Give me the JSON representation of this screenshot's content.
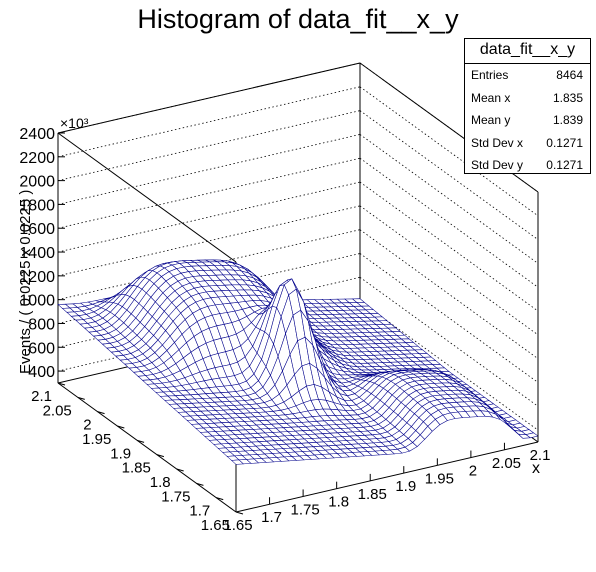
{
  "title": "Histogram of data_fit__x_y",
  "stats": {
    "name": "data_fit__x_y",
    "rows": [
      {
        "label": "Entries",
        "value": "8464"
      },
      {
        "label": "Mean x",
        "value": "1.835"
      },
      {
        "label": "Mean y",
        "value": "1.839"
      },
      {
        "label": "Std Dev x",
        "value": "0.1271"
      },
      {
        "label": "Std Dev y",
        "value": "0.1271"
      }
    ]
  },
  "chart_data": {
    "type": "lego-surface",
    "title": "Histogram of data_fit__x_y",
    "xlabel": "x",
    "ylabel": "",
    "zlabel": "Events / ( 0.0225 x 0.0225 )",
    "z_exponent": "×10³",
    "xlim": [
      1.65,
      2.1
    ],
    "ylim": [
      1.65,
      2.1
    ],
    "zlim": [
      300,
      2400
    ],
    "x_ticks": [
      "1.65",
      "1.7",
      "1.75",
      "1.8",
      "1.85",
      "1.9",
      "1.95",
      "2",
      "2.05",
      "2.1"
    ],
    "y_ticks": [
      "1.65",
      "1.7",
      "1.75",
      "1.8",
      "1.85",
      "1.9",
      "1.95",
      "2",
      "2.05",
      "2.1"
    ],
    "z_ticks": [
      "400",
      "600",
      "800",
      "1000",
      "1200",
      "1400",
      "1600",
      "1800",
      "2000",
      "2200",
      "2400"
    ],
    "surface_color": "#00008b",
    "surface": {
      "x_bins": 20,
      "y_bins": 20,
      "background_level": 750,
      "plateau_level": 1550,
      "peak_level": 1880,
      "peak_x": 1.85,
      "peak_y": 1.85
    }
  }
}
